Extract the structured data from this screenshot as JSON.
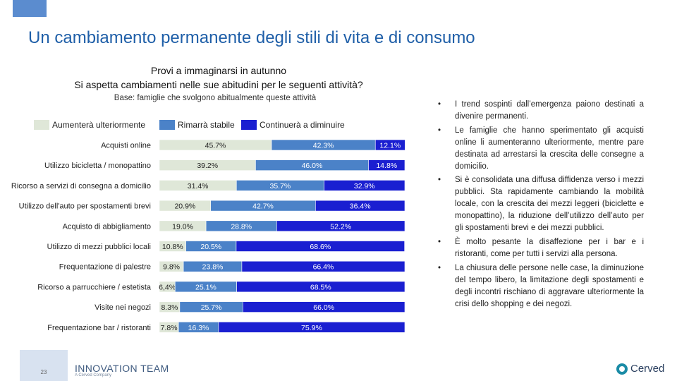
{
  "slide_title": "Un cambiamento permanente degli stili di vita e di consumo",
  "chart_data": {
    "type": "bar",
    "orientation": "horizontal",
    "stacked": true,
    "normalized_percent": true,
    "title": "Provi a immaginarsi in autunno",
    "title_line2": "Si aspetta cambiamenti nelle sue abitudini per le seguenti attività?",
    "subtitle": "Base: famiglie che svolgono abitualmente queste attività",
    "categories": [
      "Acquisti online",
      "Utilizzo bicicletta / monopattino",
      "Ricorso a servizi di consegna a domicilio",
      "Utilizzo dell'auto per spostamenti brevi",
      "Acquisto di abbigliamento",
      "Utilizzo di mezzi pubblici locali",
      "Frequentazione di palestre",
      "Ricorso a parrucchiere / estetista",
      "Visite nei negozi",
      "Frequentazione bar / ristoranti"
    ],
    "series": [
      {
        "name": "Aumenterà ulteriormente",
        "color": "#dfe7d8",
        "text_color": "#222222",
        "values": [
          45.7,
          39.2,
          31.4,
          20.9,
          19.0,
          10.8,
          9.8,
          6.4,
          8.3,
          7.8
        ],
        "labels": [
          "45.7%",
          "39.2%",
          "31.4%",
          "20.9%",
          "19.0%",
          "10.8%",
          "9.8%",
          "6,4%",
          "8.3%",
          "7.8%"
        ]
      },
      {
        "name": "Rimarrà stabile",
        "color": "#4b82c8",
        "text_color": "#ffffff",
        "values": [
          42.3,
          46.0,
          35.7,
          42.7,
          28.8,
          20.5,
          23.8,
          25.1,
          25.7,
          16.3
        ],
        "labels": [
          "42.3%",
          "46.0%",
          "35.7%",
          "42.7%",
          "28.8%",
          "20.5%",
          "23.8%",
          "25.1%",
          "25.7%",
          "16.3%"
        ]
      },
      {
        "name": "Continuerà a diminuire",
        "color": "#1a1fd1",
        "text_color": "#ffffff",
        "values": [
          12.1,
          14.8,
          32.9,
          36.4,
          52.2,
          68.6,
          66.4,
          68.5,
          66.0,
          75.9
        ],
        "labels": [
          "12.1%",
          "14.8%",
          "32.9%",
          "36.4%",
          "52.2%",
          "68.6%",
          "66.4%",
          "68.5%",
          "66.0%",
          "75.9%"
        ]
      }
    ],
    "xlim": [
      0,
      100
    ],
    "legend_position": "top"
  },
  "bullets": [
    "I trend sospinti dall’emergenza paiono destinati a divenire permanenti.",
    "Le famiglie che hanno sperimentato gli acquisti online li aumenteranno ulteriormente, mentre pare destinata ad arrestarsi la crescita delle consegne a domicilio.",
    "Si è consolidata una diffusa diffidenza verso i mezzi pubblici. Sta rapidamente cambiando la mobilità locale, con la crescita dei mezzi leggeri (biciclette e monopattino), la riduzione dell’utilizzo dell’auto per gli spostamenti brevi e dei mezzi pubblici.",
    "È molto pesante la disaffezione per i bar e i ristoranti, come per tutti i servizi alla persona.",
    "La chiusura delle persone nelle case, la diminuzione del tempo libero, la limitazione degli spostamenti e degli incontri rischiano di aggravare ulteriormente la crisi dello shopping e dei negozi."
  ],
  "bullet_glyph": "•",
  "footer": {
    "page_number": "23",
    "brand": "INNOVATION TEAM",
    "brand_sub": "A Cerved Company",
    "partner": "Cerved"
  }
}
